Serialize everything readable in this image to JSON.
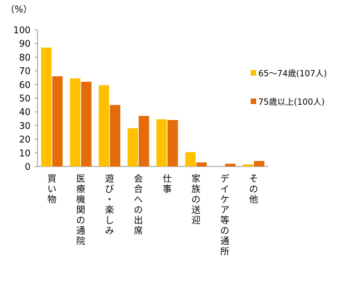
{
  "chart_data": {
    "type": "bar",
    "unit_label": "（%）",
    "ylim": [
      0,
      100
    ],
    "yticks": [
      0,
      10,
      20,
      30,
      40,
      50,
      60,
      70,
      80,
      90,
      100
    ],
    "grid": false,
    "legend_position": "right",
    "categories": [
      "買い物",
      "医療機関の通院",
      "遊び・楽しみ",
      "会合への出席",
      "仕事",
      "家族の送迎",
      "デイケア等の通所",
      "その他"
    ],
    "series": [
      {
        "name": "65〜74歳(107人)",
        "color": "#FFC000",
        "values": [
          87,
          64.5,
          59.5,
          28,
          34.5,
          10.5,
          0,
          1.5
        ]
      },
      {
        "name": "75歳以上(100人)",
        "color": "#E46C0A",
        "values": [
          66,
          62,
          45,
          37,
          34,
          3,
          2,
          4
        ]
      }
    ]
  }
}
